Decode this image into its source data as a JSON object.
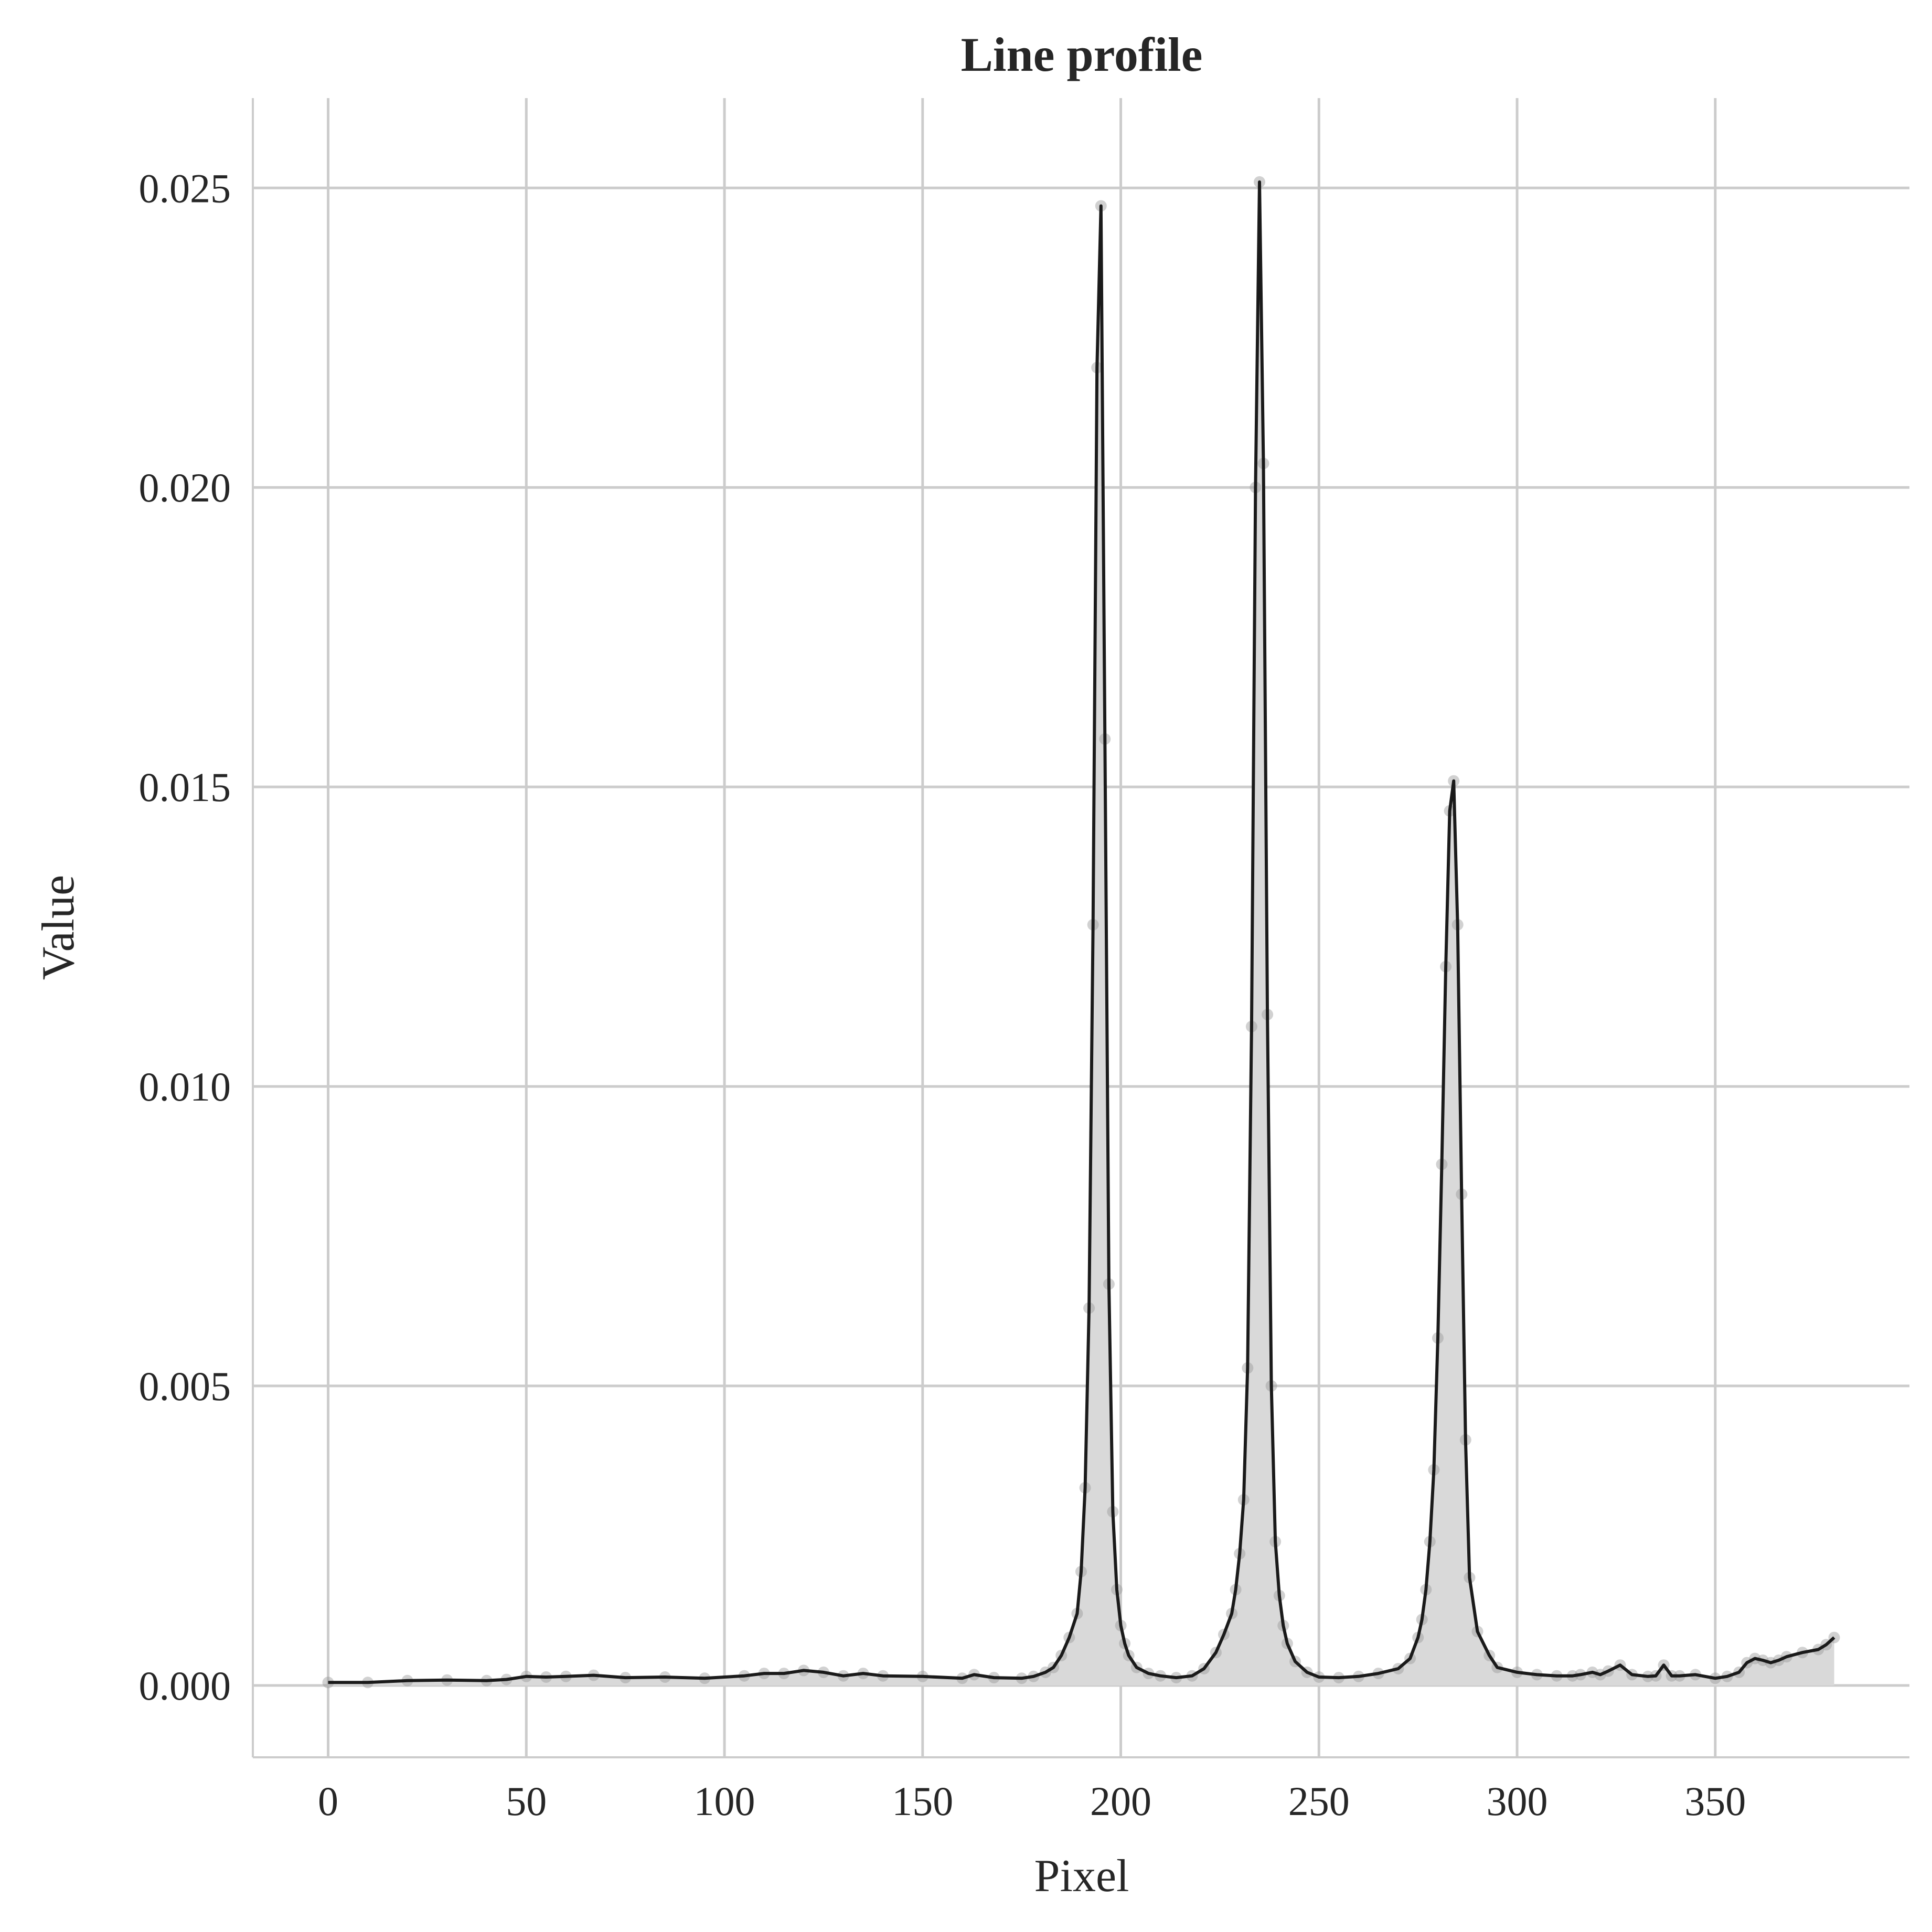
{
  "chart_data": {
    "type": "line",
    "title": "Line profile",
    "xlabel": "Pixel",
    "ylabel": "Value",
    "xlim": [
      -19,
      399
    ],
    "ylim": [
      -0.0012,
      0.0265
    ],
    "xticks": [
      0,
      50,
      100,
      150,
      200,
      250,
      300,
      350
    ],
    "xtick_labels": [
      "0",
      "50",
      "100",
      "150",
      "200",
      "250",
      "300",
      "350"
    ],
    "yticks": [
      0.0,
      0.005,
      0.01,
      0.015,
      0.02,
      0.025
    ],
    "ytick_labels": [
      "0.000",
      "0.005",
      "0.010",
      "0.015",
      "0.020",
      "0.025"
    ],
    "grid": true,
    "series": [
      {
        "line_color": "#1a1a1a",
        "fill_color": "#d9d9d9",
        "marker_color": "#999999",
        "fill_under": true,
        "markers": true,
        "x": [
          0,
          10,
          20,
          30,
          40,
          45,
          50,
          55,
          60,
          67,
          75,
          85,
          95,
          105,
          110,
          115,
          120,
          125,
          130,
          135,
          140,
          150,
          160,
          163,
          168,
          175,
          178,
          181,
          183,
          185,
          187,
          189,
          190,
          191,
          192,
          193,
          194,
          195,
          196,
          197,
          198,
          199,
          200,
          201,
          202,
          204,
          207,
          210,
          214,
          218,
          221,
          224,
          226,
          228,
          229,
          230,
          231,
          232,
          233,
          234,
          235,
          236,
          237,
          238,
          239,
          240,
          241,
          242,
          244,
          247,
          250,
          255,
          260,
          265,
          270,
          273,
          275,
          276,
          277,
          278,
          279,
          280,
          281,
          282,
          283,
          284,
          285,
          286,
          287,
          288,
          290,
          293,
          295,
          300,
          305,
          310,
          314,
          316,
          319,
          321,
          323,
          326,
          329,
          333,
          335,
          337,
          339,
          341,
          345,
          350,
          353,
          356,
          358,
          360,
          362,
          364,
          366,
          368,
          372,
          376,
          378,
          380
        ],
        "y": [
          5e-05,
          5e-05,
          8e-05,
          9e-05,
          8e-05,
          0.0001,
          0.00015,
          0.00014,
          0.00015,
          0.00017,
          0.00013,
          0.00014,
          0.00012,
          0.00016,
          0.0002,
          0.0002,
          0.00025,
          0.00022,
          0.00016,
          0.0002,
          0.00016,
          0.00015,
          0.00012,
          0.00018,
          0.00013,
          0.00012,
          0.00015,
          0.00022,
          0.0003,
          0.0005,
          0.0008,
          0.0012,
          0.0019,
          0.0033,
          0.0063,
          0.0127,
          0.022,
          0.0247,
          0.0158,
          0.0067,
          0.0029,
          0.0016,
          0.001,
          0.0007,
          0.0005,
          0.0003,
          0.0002,
          0.00016,
          0.00013,
          0.00016,
          0.00028,
          0.00055,
          0.00085,
          0.0012,
          0.0016,
          0.0022,
          0.0031,
          0.0053,
          0.011,
          0.02,
          0.0251,
          0.0204,
          0.0112,
          0.005,
          0.0024,
          0.0015,
          0.001,
          0.0007,
          0.0004,
          0.00022,
          0.00014,
          0.00013,
          0.00015,
          0.0002,
          0.00028,
          0.00045,
          0.0008,
          0.0011,
          0.0016,
          0.0024,
          0.0036,
          0.0058,
          0.0087,
          0.012,
          0.0146,
          0.0151,
          0.0127,
          0.0082,
          0.0041,
          0.0018,
          0.0009,
          0.0005,
          0.0003,
          0.00022,
          0.00018,
          0.00016,
          0.00016,
          0.00018,
          0.00022,
          0.00018,
          0.00024,
          0.00034,
          0.00018,
          0.00015,
          0.00016,
          0.00034,
          0.00016,
          0.00016,
          0.00018,
          0.00012,
          0.00015,
          0.00022,
          0.00038,
          0.00045,
          0.00042,
          0.00038,
          0.00042,
          0.00048,
          0.00055,
          0.0006,
          0.00068,
          0.0008
        ]
      }
    ]
  }
}
